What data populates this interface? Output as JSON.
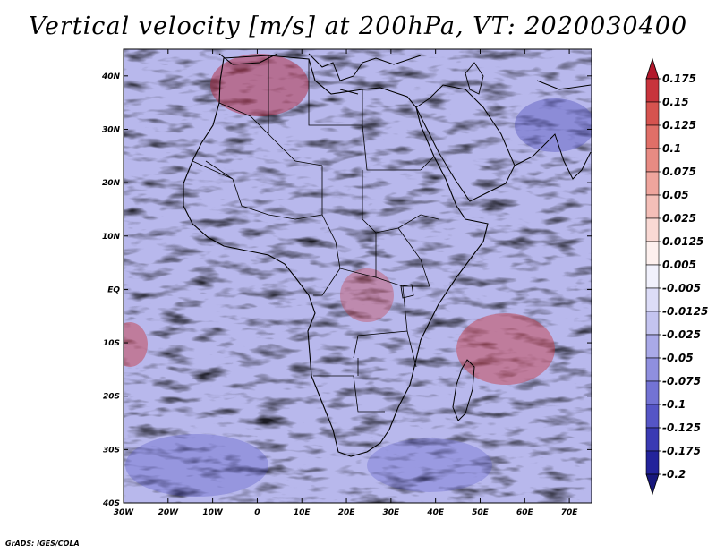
{
  "title": "Vertical velocity [m/s] at 200hPa, VT: 2020030400",
  "credit": "GrADS: IGES/COLA",
  "map": {
    "lon_min": -30,
    "lon_max": 75,
    "lat_min": -40,
    "lat_max": 45,
    "lat_labels": [
      "40N",
      "30N",
      "20N",
      "10N",
      "EQ",
      "10S",
      "20S",
      "30S",
      "40S"
    ],
    "lat_values": [
      40,
      30,
      20,
      10,
      0,
      -10,
      -20,
      -30,
      -40
    ],
    "lon_labels": [
      "30W",
      "20W",
      "10W",
      "0",
      "10E",
      "20E",
      "30E",
      "40E",
      "50E",
      "60E",
      "70E"
    ],
    "lon_values": [
      -30,
      -20,
      -10,
      0,
      10,
      20,
      30,
      40,
      50,
      60,
      70
    ]
  },
  "colorbar": {
    "levels": [
      "0.175",
      "0.15",
      "0.125",
      "0.1",
      "0.075",
      "0.05",
      "0.025",
      "0.0125",
      "0.005",
      "-0.005",
      "-0.0125",
      "-0.025",
      "-0.05",
      "-0.075",
      "-0.1",
      "-0.125",
      "-0.175",
      "-0.2"
    ],
    "colors": [
      "#b2182b",
      "#c8343c",
      "#d6534f",
      "#e06f68",
      "#e88b83",
      "#efa59d",
      "#f4bfb8",
      "#f9d9d4",
      "#fdf0ee",
      "#f1f1fc",
      "#dcdcf7",
      "#c4c4f0",
      "#a9a9e8",
      "#8f8fdf",
      "#7373d4",
      "#5555c6",
      "#3a3ab3",
      "#23239b",
      "#17177c"
    ]
  }
}
